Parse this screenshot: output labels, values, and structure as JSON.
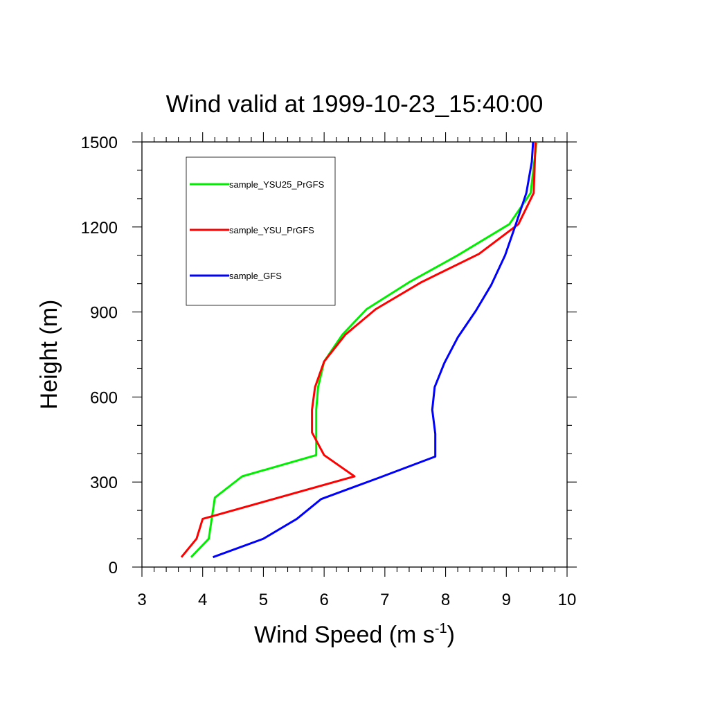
{
  "chart_data": {
    "type": "line",
    "title": "Wind valid at 1999-10-23_15:40:00",
    "xlabel": "Wind Speed (m s",
    "xlabel_sup": "-1",
    "xlabel_end": ")",
    "ylabel": "Height (m)",
    "xlim": [
      3,
      10
    ],
    "ylim": [
      0,
      1500
    ],
    "xticks": [
      "3",
      "4",
      "5",
      "6",
      "7",
      "8",
      "9",
      "10"
    ],
    "yticks": [
      "0",
      "300",
      "600",
      "900",
      "1200",
      "1500"
    ],
    "grid": false,
    "legend_position": "top-left",
    "series": [
      {
        "name": "sample_YSU25_PrGFS",
        "color": "#00ee00",
        "points": [
          [
            3.81,
            35
          ],
          [
            4.1,
            100
          ],
          [
            4.2,
            245
          ],
          [
            4.65,
            320
          ],
          [
            5.87,
            395
          ],
          [
            5.87,
            475
          ],
          [
            5.87,
            555
          ],
          [
            5.9,
            635
          ],
          [
            6.0,
            725
          ],
          [
            6.3,
            820
          ],
          [
            6.7,
            910
          ],
          [
            7.4,
            1005
          ],
          [
            8.2,
            1100
          ],
          [
            9.05,
            1210
          ],
          [
            9.4,
            1320
          ],
          [
            9.5,
            1500
          ]
        ]
      },
      {
        "name": "sample_YSU_PrGFS",
        "color": "#ff0000",
        "points": [
          [
            3.65,
            35
          ],
          [
            3.9,
            100
          ],
          [
            4.0,
            170
          ],
          [
            6.5,
            320
          ],
          [
            6.0,
            395
          ],
          [
            5.8,
            475
          ],
          [
            5.8,
            555
          ],
          [
            5.85,
            635
          ],
          [
            6.0,
            725
          ],
          [
            6.35,
            820
          ],
          [
            6.85,
            910
          ],
          [
            7.6,
            1005
          ],
          [
            8.55,
            1105
          ],
          [
            9.2,
            1210
          ],
          [
            9.45,
            1320
          ],
          [
            9.48,
            1500
          ]
        ]
      },
      {
        "name": "sample_GFS",
        "color": "#0000ff",
        "points": [
          [
            4.17,
            35
          ],
          [
            5.0,
            100
          ],
          [
            5.55,
            170
          ],
          [
            5.95,
            240
          ],
          [
            6.9,
            315
          ],
          [
            7.83,
            390
          ],
          [
            7.83,
            470
          ],
          [
            7.78,
            555
          ],
          [
            7.82,
            635
          ],
          [
            7.98,
            720
          ],
          [
            8.2,
            810
          ],
          [
            8.5,
            905
          ],
          [
            8.75,
            995
          ],
          [
            8.98,
            1100
          ],
          [
            9.15,
            1205
          ],
          [
            9.33,
            1320
          ],
          [
            9.42,
            1430
          ],
          [
            9.44,
            1500
          ]
        ]
      }
    ]
  }
}
